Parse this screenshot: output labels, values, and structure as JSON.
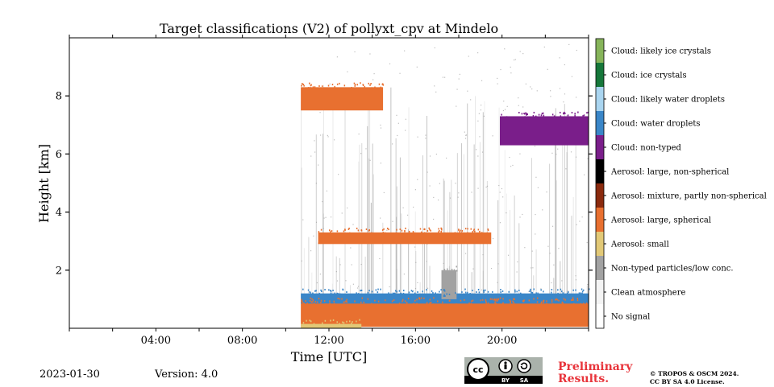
{
  "chart_data": {
    "type": "heatmap",
    "title": "Target classifications (V2) of pollyxt_cpv at Mindelo",
    "xlabel": "Time [UTC]",
    "ylabel": "Height [km]",
    "x_range_hours": [
      0,
      24
    ],
    "y_range_km": [
      0,
      10
    ],
    "x_ticks": [
      "04:00",
      "08:00",
      "12:00",
      "16:00",
      "20:00"
    ],
    "y_ticks": [
      "2",
      "4",
      "6",
      "8"
    ],
    "legend_placement": "right colorbar",
    "classes": [
      {
        "label": "No signal",
        "color": "#ffffff"
      },
      {
        "label": "Clean atmosphere",
        "color": "#f4f4f4"
      },
      {
        "label": "Non-typed particles/low conc.",
        "color": "#a2a2a2"
      },
      {
        "label": "Aerosol: small",
        "color": "#e2c977"
      },
      {
        "label": "Aerosol: large, spherical",
        "color": "#e87030"
      },
      {
        "label": "Aerosol: mixture, partly non-spherical",
        "color": "#8a2a0e"
      },
      {
        "label": "Aerosol: large, non-spherical",
        "color": "#000000"
      },
      {
        "label": "Cloud: non-typed",
        "color": "#7a1e8a"
      },
      {
        "label": "Cloud: water droplets",
        "color": "#3a86c8"
      },
      {
        "label": "Cloud: likely water droplets",
        "color": "#aad5f0"
      },
      {
        "label": "Cloud: ice crystals",
        "color": "#16773a"
      },
      {
        "label": "Cloud: likely ice crystals",
        "color": "#86b45a"
      }
    ],
    "observation_start_hour": 10.7,
    "features": [
      {
        "class": "Aerosol: large, spherical",
        "hours": [
          10.7,
          24
        ],
        "height_km": [
          0.05,
          0.9
        ]
      },
      {
        "class": "Cloud: water droplets",
        "hours": [
          10.7,
          24
        ],
        "height_km": [
          0.85,
          1.2
        ]
      },
      {
        "class": "Aerosol: small",
        "hours": [
          10.7,
          13.5
        ],
        "height_km": [
          0.0,
          0.15
        ]
      },
      {
        "class": "Non-typed particles/low conc.",
        "hours": [
          17.2,
          17.9
        ],
        "height_km": [
          1.0,
          2.0
        ]
      },
      {
        "class": "Aerosol: large, spherical",
        "hours": [
          11.5,
          19.5
        ],
        "height_km": [
          2.9,
          3.3
        ]
      },
      {
        "class": "Aerosol: large, spherical",
        "hours": [
          10.7,
          14.5
        ],
        "height_km": [
          7.5,
          8.3
        ]
      },
      {
        "class": "Cloud: non-typed",
        "hours": [
          19.9,
          24
        ],
        "height_km": [
          6.3,
          7.3
        ]
      }
    ]
  },
  "footer": {
    "date": "2023-01-30",
    "version": "Version: 4.0",
    "preliminary_line1": "Preliminary",
    "preliminary_line2": "Results.",
    "copyright_line1": "© TROPOS & OSCM 2024.",
    "copyright_line2": "CC BY SA 4.0 License.",
    "cc_by": "BY",
    "cc_sa": "SA",
    "cc_logo": "cc"
  }
}
